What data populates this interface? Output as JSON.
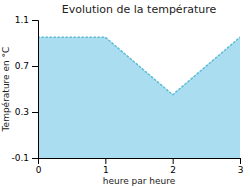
{
  "chart_data": {
    "type": "area",
    "title": "Evolution de la température",
    "xlabel": "heure par heure",
    "ylabel": "Température en °C",
    "x": [
      0,
      1,
      2,
      3
    ],
    "series": [
      {
        "type": "area",
        "color": "#aaddf0",
        "values": [
          0.95,
          0.95,
          0.45,
          0.95
        ]
      },
      {
        "type": "line",
        "color": "#5bbcd6",
        "line_style": "dotted",
        "values": [
          0.95,
          0.95,
          0.45,
          0.95
        ]
      }
    ],
    "xlim": [
      0,
      3
    ],
    "ylim": [
      -0.1,
      1.1
    ],
    "xticks": [
      0,
      1,
      2,
      3
    ],
    "yticks": [
      -0.1,
      0.3,
      0.7,
      1.1
    ],
    "grid": false
  }
}
